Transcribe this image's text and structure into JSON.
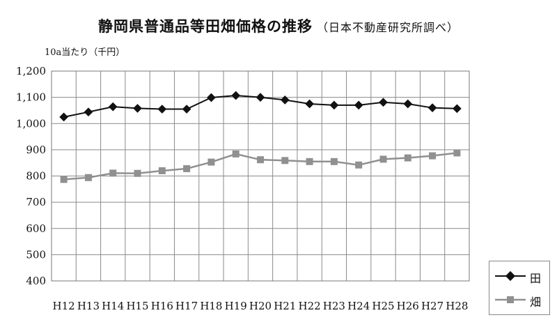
{
  "chart_data": {
    "type": "line",
    "title": "静岡県普通品等田畑価格の推移",
    "subtitle": "（日本不動産研究所調べ）",
    "ylabel": "10a当たり（千円）",
    "xlabel": "",
    "ylim": [
      400,
      1200
    ],
    "yticks": [
      400,
      500,
      600,
      700,
      800,
      900,
      1000,
      1100,
      1200
    ],
    "ytick_labels": [
      "400",
      "500",
      "600",
      "700",
      "800",
      "900",
      "1,000",
      "1,100",
      "1,200"
    ],
    "grid": true,
    "legend_position": "bottom-right",
    "categories": [
      "H12",
      "H13",
      "H14",
      "H15",
      "H16",
      "H17",
      "H18",
      "H19",
      "H20",
      "H21",
      "H22",
      "H23",
      "H24",
      "H25",
      "H26",
      "H27",
      "H28"
    ],
    "series": [
      {
        "name": "田",
        "color": "#111111",
        "marker": "diamond",
        "values": [
          1025,
          1044,
          1064,
          1058,
          1055,
          1055,
          1099,
          1107,
          1100,
          1090,
          1075,
          1070,
          1070,
          1081,
          1075,
          1060,
          1057
        ]
      },
      {
        "name": "畑",
        "color": "#909090",
        "marker": "square",
        "values": [
          787,
          794,
          811,
          810,
          820,
          828,
          853,
          884,
          862,
          859,
          855,
          855,
          842,
          864,
          869,
          877,
          888
        ]
      }
    ]
  }
}
